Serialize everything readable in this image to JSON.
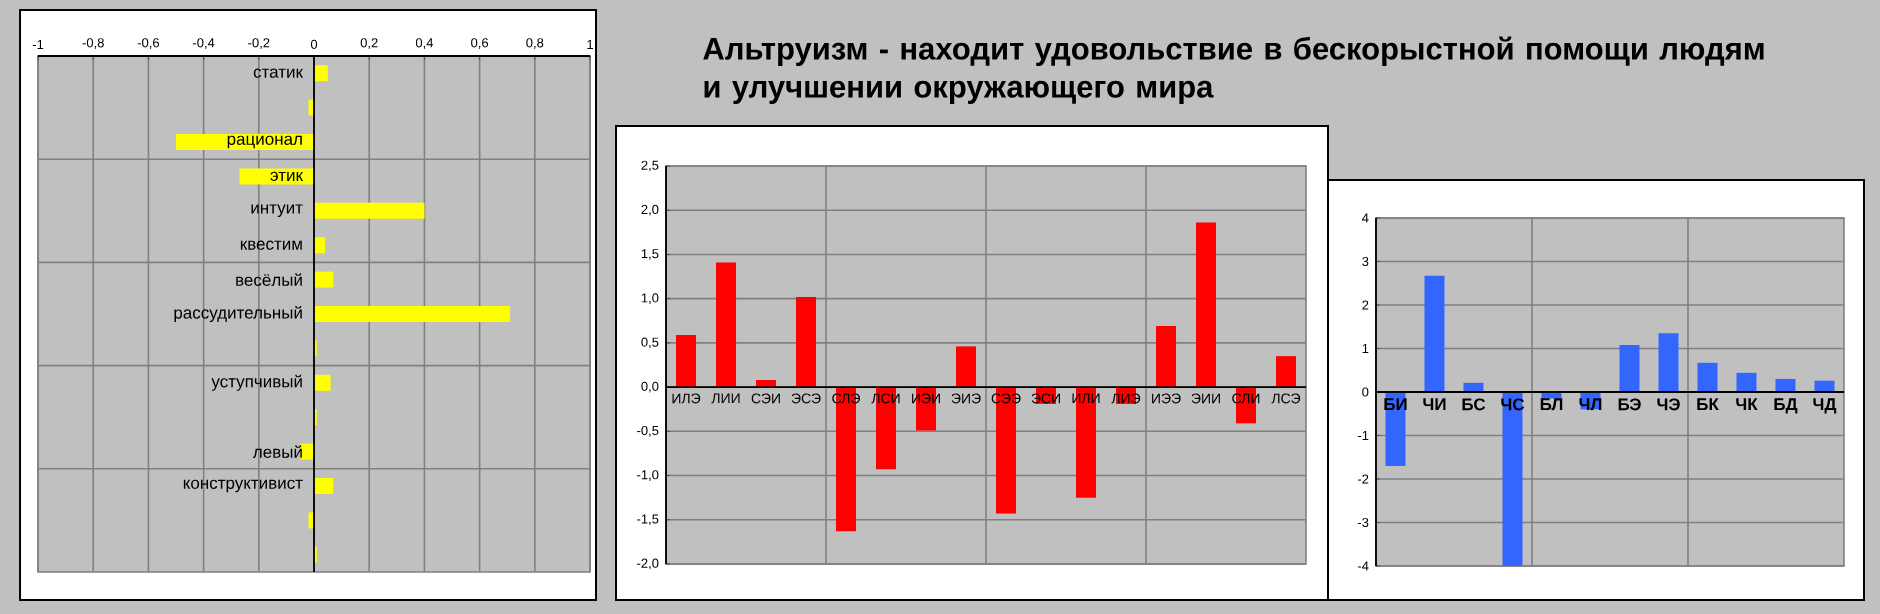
{
  "chart_data": [
    {
      "type": "bar",
      "orientation": "horizontal",
      "color": "#ffff00",
      "grid": true,
      "categories": [
        "статик",
        null,
        "рационал",
        "этик",
        "интуит",
        "квестим",
        "весёлый",
        "рассудительный",
        null,
        "уступчивый",
        null,
        "левый",
        "конструктивист",
        null,
        null
      ],
      "values": [
        0.05,
        -0.02,
        -0.5,
        -0.27,
        0.4,
        0.04,
        0.07,
        0.71,
        0.01,
        0.06,
        0.01,
        -0.05,
        0.07,
        -0.02,
        0.01
      ],
      "xlim": [
        -1,
        1
      ],
      "xticks": [
        {
          "value": -1,
          "label": "-1"
        },
        {
          "value": -0.8,
          "label": "-0,8"
        },
        {
          "value": -0.6,
          "label": "-0,6"
        },
        {
          "value": -0.4,
          "label": "-0,4"
        },
        {
          "value": -0.2,
          "label": "-0,2"
        },
        0,
        {
          "value": 0.2,
          "label": "0,2"
        },
        {
          "value": 0.4,
          "label": "0,4"
        },
        {
          "value": 0.6,
          "label": "0,6"
        },
        {
          "value": 0.8,
          "label": "0,8"
        },
        1
      ]
    },
    {
      "type": "bar",
      "title": "Альтруизм - находит удовольствие в бескорыстной помощи людям и улучшении окружающего мира",
      "color": "#ff0000",
      "grid": true,
      "categories": [
        "ИЛЭ",
        "ЛИИ",
        "СЭИ",
        "ЭСЭ",
        "СЛЭ",
        "ЛСИ",
        "ИЭИ",
        "ЭИЭ",
        "СЭЭ",
        "ЭСИ",
        "ИЛИ",
        "ЛИЭ",
        "ИЭЭ",
        "ЭИИ",
        "СЛИ",
        "ЛСЭ"
      ],
      "values": [
        0.59,
        1.41,
        0.08,
        1.02,
        -1.63,
        -0.93,
        -0.49,
        0.46,
        -1.43,
        -0.19,
        -1.25,
        -0.19,
        0.69,
        1.86,
        -0.41,
        0.35
      ],
      "ylim": [
        -2,
        2.5
      ],
      "yticks": [
        {
          "value": -2,
          "label": "-2,0"
        },
        {
          "value": -1.5,
          "label": "-1,5"
        },
        {
          "value": -1,
          "label": "-1,0"
        },
        {
          "value": -0.5,
          "label": "-0,5"
        },
        {
          "value": 0,
          "label": "0,0"
        },
        {
          "value": 0.5,
          "label": "0,5"
        },
        {
          "value": 1,
          "label": "1,0"
        },
        {
          "value": 1.5,
          "label": "1,5"
        },
        {
          "value": 2,
          "label": "2,0"
        },
        {
          "value": 2.5,
          "label": "2,5"
        }
      ]
    },
    {
      "type": "bar",
      "color": "#3366ff",
      "grid": true,
      "categories": [
        "БИ",
        "ЧИ",
        "БС",
        "ЧС",
        "БЛ",
        "ЧЛ",
        "БЭ",
        "ЧЭ",
        "БК",
        "ЧК",
        "БД",
        "ЧД"
      ],
      "values": [
        -1.7,
        2.67,
        0.21,
        -4,
        -0.15,
        -0.4,
        1.08,
        1.35,
        0.67,
        0.44,
        0.3,
        0.26
      ],
      "ylim": [
        -4,
        4
      ],
      "yticks": [
        -4,
        -3,
        -2,
        -1,
        0,
        1,
        2,
        3,
        4
      ]
    }
  ]
}
